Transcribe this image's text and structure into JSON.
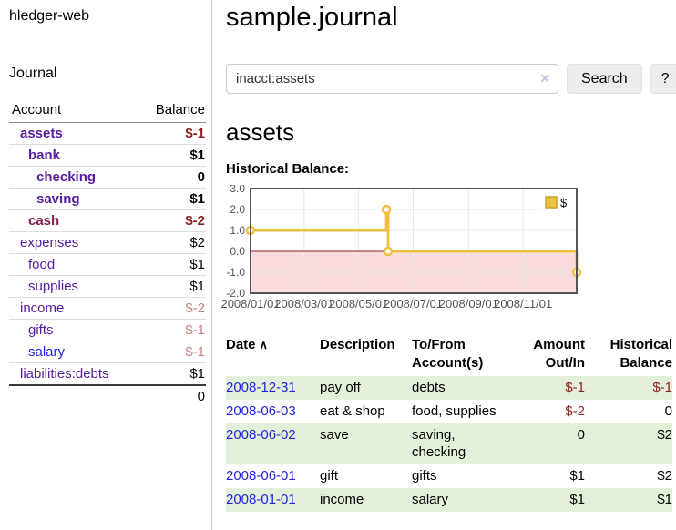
{
  "colors": {
    "purple": "#571c9d",
    "blue": "#2222dd",
    "maroon": "#7d2352",
    "neg_strong": "#8f1d1d",
    "neg_soft": "#c4827d",
    "row_green": "#e3f0da",
    "gold": "#edc240",
    "gold_border": "#c7a233",
    "pink": "#fbdcdc",
    "zero_line": "#8b1a1a",
    "axis_text": "#545454",
    "grid": "#e8e8e8",
    "chart_border": "#545454"
  },
  "app": {
    "title": "hledger-web",
    "nav_journal": "Journal"
  },
  "sidebar": {
    "col_account": "Account",
    "col_balance": "Balance",
    "total": "0",
    "rows": [
      {
        "label": "assets",
        "indent": 1,
        "bold": true,
        "color": "purple",
        "balance": "$-1",
        "bal_class": "neg_strong",
        "bal_bold": true
      },
      {
        "label": "bank",
        "indent": 2,
        "bold": true,
        "color": "purple",
        "balance": "$1",
        "bal_class": "",
        "bal_bold": true
      },
      {
        "label": "checking",
        "indent": 3,
        "bold": true,
        "color": "purple",
        "balance": "0",
        "bal_class": "",
        "bal_bold": true
      },
      {
        "label": "saving",
        "indent": 3,
        "bold": true,
        "color": "purple",
        "balance": "$1",
        "bal_class": "",
        "bal_bold": true
      },
      {
        "label": "cash",
        "indent": 2,
        "bold": true,
        "color": "maroon",
        "balance": "$-2",
        "bal_class": "neg_strong",
        "bal_bold": true
      },
      {
        "label": "expenses",
        "indent": 1,
        "bold": false,
        "color": "purple",
        "balance": "$2",
        "bal_class": "",
        "bal_bold": false
      },
      {
        "label": "food",
        "indent": 2,
        "bold": false,
        "color": "purple",
        "balance": "$1",
        "bal_class": "",
        "bal_bold": false
      },
      {
        "label": "supplies",
        "indent": 2,
        "bold": false,
        "color": "purple",
        "balance": "$1",
        "bal_class": "",
        "bal_bold": false
      },
      {
        "label": "income",
        "indent": 1,
        "bold": false,
        "color": "purple",
        "balance": "$-2",
        "bal_class": "neg_soft",
        "bal_bold": false
      },
      {
        "label": "gifts",
        "indent": 2,
        "bold": false,
        "color": "purple",
        "balance": "$-1",
        "bal_class": "neg_soft",
        "bal_bold": false
      },
      {
        "label": "salary",
        "indent": 2,
        "bold": false,
        "color": "blue",
        "balance": "$-1",
        "bal_class": "neg_soft",
        "bal_bold": false
      },
      {
        "label": "liabilities:debts",
        "indent": 1,
        "bold": false,
        "color": "purple",
        "balance": "$1",
        "bal_class": "",
        "bal_bold": false
      }
    ]
  },
  "main": {
    "title": "sample.journal",
    "search": {
      "query": "inacct:assets",
      "button": "Search",
      "help": "?",
      "clear_icon": "✕"
    },
    "account_heading": "assets"
  },
  "chart_data": {
    "type": "line",
    "title": "Historical Balance:",
    "step": true,
    "x_range": [
      "2008-01-01",
      "2008-12-31"
    ],
    "ylim": [
      -2,
      3
    ],
    "yticks": [
      {
        "label": "3.0",
        "value": 3
      },
      {
        "label": "2.0",
        "value": 2
      },
      {
        "label": "1.0",
        "value": 1
      },
      {
        "label": "0.0",
        "value": 0
      },
      {
        "label": "-1.0",
        "value": -1
      },
      {
        "label": "-2.0",
        "value": -2
      }
    ],
    "xticks": [
      {
        "label": "2008/01/01",
        "date": "2008-01-01"
      },
      {
        "label": "2008/03/01",
        "date": "2008-03-01"
      },
      {
        "label": "2008/05/01",
        "date": "2008-05-01"
      },
      {
        "label": "2008/07/01",
        "date": "2008-07-01"
      },
      {
        "label": "2008/09/01",
        "date": "2008-09-01"
      },
      {
        "label": "2008/11/01",
        "date": "2008-11-01"
      }
    ],
    "series": [
      {
        "name": "$",
        "color": "#edc240",
        "points": [
          {
            "date": "2008-01-01",
            "value": 1
          },
          {
            "date": "2008-06-01",
            "value": 2
          },
          {
            "date": "2008-06-03",
            "value": 0
          },
          {
            "date": "2008-12-31",
            "value": -1
          }
        ]
      }
    ],
    "legend": "$",
    "legend_position": "top-right",
    "negative_region_shaded": true,
    "grid": true
  },
  "register": {
    "h_date": "Date",
    "sort_icon": "∧",
    "h_description": "Description",
    "h_accounts": "To/From\nAccount(s)",
    "h_amount": "Amount\nOut/In",
    "h_balance": "Historical\nBalance",
    "rows": [
      {
        "date": "2008-12-31",
        "description": "pay off",
        "accounts": "debts",
        "amount": "$-1",
        "amount_neg": true,
        "balance": "$-1",
        "balance_neg": true,
        "shade": true
      },
      {
        "date": "2008-06-03",
        "description": "eat & shop",
        "accounts": "food, supplies",
        "amount": "$-2",
        "amount_neg": true,
        "balance": "0",
        "balance_neg": false,
        "shade": false
      },
      {
        "date": "2008-06-02",
        "description": "save",
        "accounts": "saving,\nchecking",
        "amount": "0",
        "amount_neg": false,
        "balance": "$2",
        "balance_neg": false,
        "shade": true
      },
      {
        "date": "2008-06-01",
        "description": "gift",
        "accounts": "gifts",
        "amount": "$1",
        "amount_neg": false,
        "balance": "$2",
        "balance_neg": false,
        "shade": false
      },
      {
        "date": "2008-01-01",
        "description": "income",
        "accounts": "salary",
        "amount": "$1",
        "amount_neg": false,
        "balance": "$1",
        "balance_neg": false,
        "shade": true
      }
    ]
  }
}
